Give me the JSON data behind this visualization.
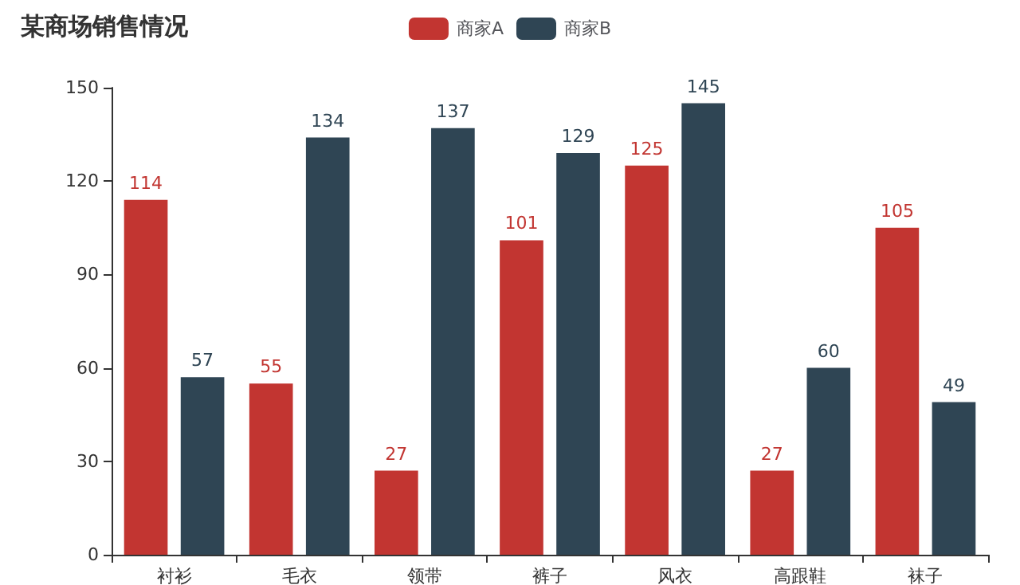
{
  "chart_data": {
    "type": "bar",
    "title": "某商场销售情况",
    "categories": [
      "衬衫",
      "毛衣",
      "领带",
      "裤子",
      "风衣",
      "高跟鞋",
      "袜子"
    ],
    "series": [
      {
        "name": "商家A",
        "color": "#c23531",
        "values": [
          114,
          55,
          27,
          101,
          125,
          27,
          105
        ]
      },
      {
        "name": "商家B",
        "color": "#2f4554",
        "values": [
          57,
          134,
          137,
          129,
          145,
          60,
          49
        ]
      }
    ],
    "ylim": [
      0,
      150
    ],
    "yticks": [
      0,
      30,
      60,
      90,
      120,
      150
    ],
    "grid": false,
    "legend": "top",
    "data_labels": true
  }
}
